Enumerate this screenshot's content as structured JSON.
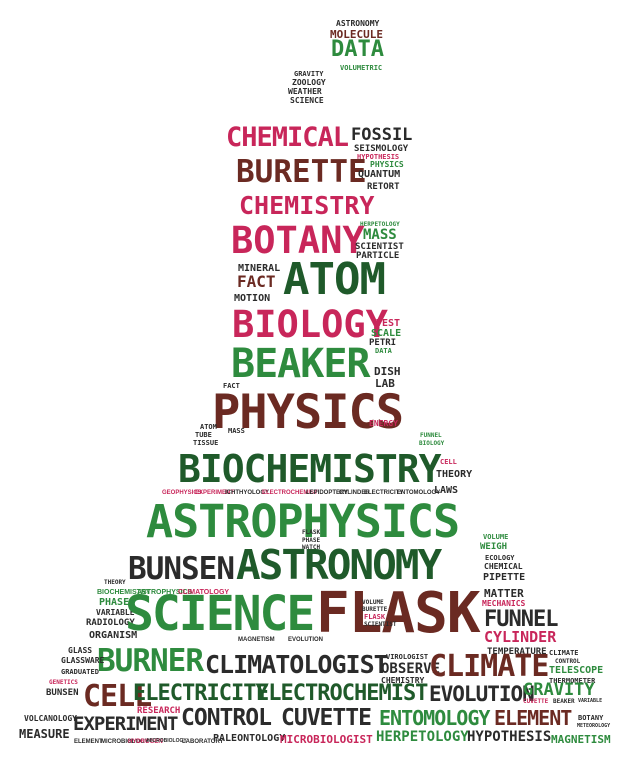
{
  "palette": {
    "green": "#2e8b3e",
    "dark_green": "#1f5a2a",
    "brown": "#6b2a22",
    "pink": "#c8265a",
    "black": "#2b2b2b"
  },
  "words": {
    "astronomy_top": "ASTRONOMY",
    "molecule": "MOLECULE",
    "data_top": "DATA",
    "volumetric": "VOLUMETRIC",
    "gravity_top": "GRAVITY",
    "zoology": "ZOOLOGY",
    "weather": "WEATHER",
    "science_top": "SCIENCE",
    "chemical": "CHEMICAL",
    "fossil": "FOSSIL",
    "seismology": "SEISMOLOGY",
    "hypothesis_small": "HYPOTHESIS",
    "physics_small": "PHYSICS",
    "burette": "BURETTE",
    "quantum": "QUANTUM",
    "retort": "RETORT",
    "chemistry": "CHEMISTRY",
    "herpetology_small": "HERPETOLOGY",
    "botany": "BOTANY",
    "mass": "MASS",
    "scientist": "SCIENTIST",
    "particle": "PARTICLE",
    "mineral": "MINERAL",
    "fact": "FACT",
    "atom": "ATOM",
    "motion": "MOTION",
    "biology": "BIOLOGY",
    "test": "TEST",
    "scale": "SCALE",
    "petri": "PETRI",
    "data_small": "DATA",
    "beaker": "BEAKER",
    "dish": "DISH",
    "lab": "LAB",
    "fact2": "FACT",
    "physics": "PHYSICS",
    "atom2": "ATOM",
    "tube": "TUBE",
    "tissue": "TISSUE",
    "mass2": "MASS",
    "energy": "ENERGY",
    "funnel_small": "FUNNEL",
    "biology_small": "BIOLOGY",
    "biochemistry": "BIOCHEMISTRY",
    "cell_small": "CELL",
    "theory": "THEORY",
    "laws": "LAWS",
    "geophysics": "GEOPHYSICS",
    "experiment_small": "EXPERIMENT",
    "ichthyology": "ICHTHYOLOGY",
    "electrochemist_small": "ELECTROCHEMIST",
    "lepidoptery": "LEPIDOPTERY",
    "cylinder_small": "CYLINDER",
    "electricity_small": "ELECTRICITY",
    "entomology_small": "ENTOMOLOGY",
    "astrophysics": "ASTROPHYSICS",
    "flask_small": "FLASK",
    "phase": "PHASE",
    "watch": "WATCH",
    "volume_small": "VOLUME",
    "weigh": "WEIGH",
    "bunsen": "BUNSEN",
    "astronomy": "ASTRONOMY",
    "ecology": "ECOLOGY",
    "chemical_small": "CHEMICAL",
    "pipette": "PIPETTE",
    "theory2": "THEORY",
    "biochemistry_small": "BIOCHEMISTRY",
    "astrophysics_small": "ASTROPHYSICS",
    "climatology": "CLIMATOLOGY",
    "phase2": "PHASE",
    "variable": "VARIABLE",
    "matter": "MATTER",
    "mechanics": "MECHANICS",
    "radiology": "RADIOLOGY",
    "science": "SCIENCE",
    "flask": "FLASK",
    "volume2": "VOLUME",
    "burette_small": "BURETTE",
    "flask2": "FLASK",
    "scientist_small": "SCIENTIST",
    "funnel": "FUNNEL",
    "organism": "ORGANISM",
    "magnetism_small": "MAGNETISM",
    "evolution_small": "EVOLUTION",
    "cylinder": "CYLINDER",
    "glass": "GLASS",
    "temperature": "TEMPERATURE",
    "climate_small": "CLIMATE",
    "control_small": "CONTROL",
    "burner": "BURNER",
    "climatologist": "CLIMATOLOGIST",
    "virologist": "VIROLOGIST",
    "observe": "OBSERVE",
    "chemistry_small": "CHEMISTRY",
    "climate": "CLIMATE",
    "telescope": "TELESCOPE",
    "thermometer": "THERMOMETER",
    "genetics": "GENETICS",
    "glassware": "GLASSWARE",
    "graduated": "GRADUATED",
    "bunsen2": "BUNSEN",
    "cell": "CELL",
    "electricity": "ELECTRICITY",
    "electrochemist": "ELECTROCHEMIST",
    "evolution": "EVOLUTION",
    "gravity": "GRAVITY",
    "cuvette_small": "CUVETTE",
    "beaker_small": "BEAKER",
    "variable_small": "VARIABLE",
    "research": "RESEARCH",
    "volcanology": "VOLCANOLOGY",
    "experiment": "EXPERIMENT",
    "control": "CONTROL",
    "cuvette": "CUVETTE",
    "entomology": "ENTOMOLOGY",
    "element": "ELEMENT",
    "botany_small": "BOTANY",
    "meteorology": "METEOROLOGY",
    "measure": "MEASURE",
    "element_small": "ELEMENT",
    "microbiology_small": "MICROBIOLOGY",
    "hydrogen": "HYDROGEN",
    "laboratory": "LABORATORY",
    "paleontology": "PALEONTOLOGY",
    "microbiologist": "MICROBIOLOGIST",
    "herpetology": "HERPETOLOGY",
    "hypothesis": "HYPOTHESIS",
    "magnetism": "MAGNETISM"
  }
}
